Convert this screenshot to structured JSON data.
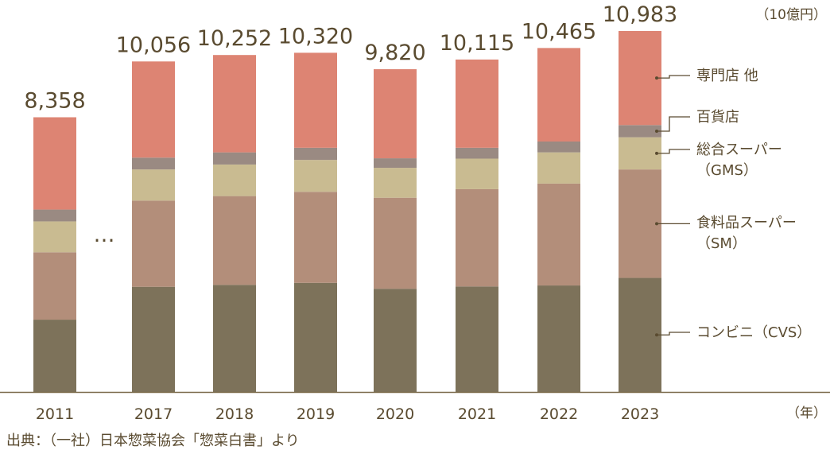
{
  "chart_data": {
    "type": "bar",
    "stacked": true,
    "categories": [
      "2011",
      "2017",
      "2018",
      "2019",
      "2020",
      "2021",
      "2022",
      "2023"
    ],
    "gap_label": "…",
    "unit_y": "（10億円）",
    "unit_x": "（年）",
    "source": "出典：（一社）日本惣菜協会「惣菜白書」より",
    "totals": [
      8358,
      10056,
      10252,
      10320,
      9820,
      10115,
      10465,
      10983
    ],
    "total_labels": [
      "8,358",
      "10,056",
      "10,252",
      "10,320",
      "9,820",
      "10,115",
      "10,465",
      "10,983"
    ],
    "ylim": [
      0,
      11200
    ],
    "grid": false,
    "legend_placement": "right",
    "series": [
      {
        "name": "コンビニ（CVS）",
        "legend_lines": [
          "コンビニ（CVS）"
        ],
        "color": "#7d725a",
        "values": [
          2200,
          3200,
          3260,
          3320,
          3140,
          3210,
          3240,
          3470
        ]
      },
      {
        "name": "食料品スーパー（SM）",
        "legend_lines": [
          "食料品スーパー",
          "（SM）"
        ],
        "color": "#b38e7a",
        "values": [
          2050,
          2620,
          2700,
          2770,
          2770,
          2960,
          3100,
          3300
        ]
      },
      {
        "name": "総合スーパー（GMS）",
        "legend_lines": [
          "総合スーパー",
          "（GMS）"
        ],
        "color": "#c9bb91",
        "values": [
          940,
          950,
          960,
          970,
          910,
          930,
          950,
          980
        ]
      },
      {
        "name": "百貨店",
        "legend_lines": [
          "百貨店"
        ],
        "color": "#9a8a82",
        "values": [
          360,
          360,
          370,
          370,
          290,
          330,
          330,
          370
        ]
      },
      {
        "name": "専門店 他",
        "legend_lines": [
          "専門店 他"
        ],
        "color": "#dd8473",
        "values": [
          2808,
          2926,
          2962,
          2890,
          2710,
          2685,
          2845,
          2863
        ]
      }
    ]
  }
}
